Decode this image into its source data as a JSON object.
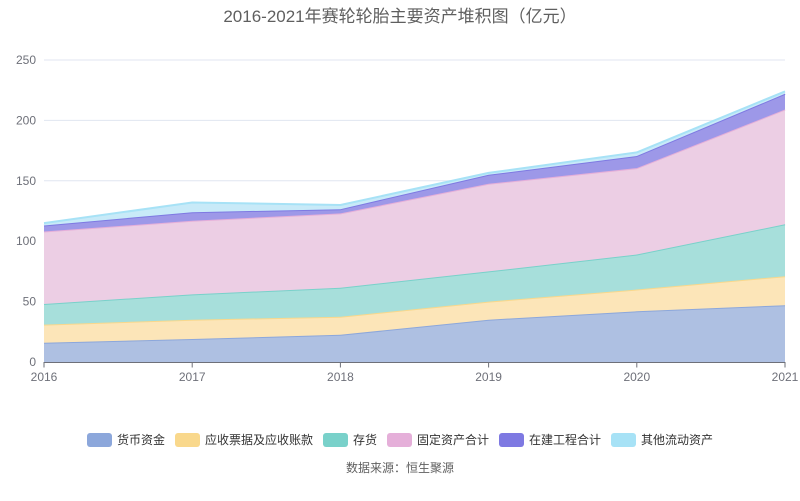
{
  "title": "2016-2021年赛轮轮胎主要资产堆积图（亿元）",
  "source": "数据来源：恒生聚源",
  "axis_color": "#6E7079",
  "grid_color": "#E0E6F1",
  "chart_data": {
    "type": "area",
    "stacked": true,
    "title": "2016-2021年赛轮轮胎主要资产堆积图（亿元）",
    "x": [
      "2016",
      "2017",
      "2018",
      "2019",
      "2020",
      "2021"
    ],
    "series": [
      {
        "name": "货币资金",
        "values": [
          16,
          19,
          22.5,
          35,
          42,
          47
        ],
        "line_color": "#8CA7DB",
        "fill_color": "#AEC0E2"
      },
      {
        "name": "应收票据及应收账款",
        "values": [
          15,
          16,
          15,
          15,
          18,
          24
        ],
        "line_color": "#F9D88C",
        "fill_color": "#FCE5B8"
      },
      {
        "name": "存货",
        "values": [
          17,
          21,
          24,
          25,
          29,
          43
        ],
        "line_color": "#79D1CA",
        "fill_color": "#A7DFDB"
      },
      {
        "name": "固定资产合计",
        "values": [
          60,
          61,
          61.5,
          72.5,
          71.5,
          95
        ],
        "line_color": "#E5AFD9",
        "fill_color": "#ECCEE4"
      },
      {
        "name": "在建工程合计",
        "values": [
          5,
          7,
          3.5,
          7.5,
          10,
          13
        ],
        "line_color": "#7E79E2",
        "fill_color": "#9D98E8"
      },
      {
        "name": "其他流动资产",
        "values": [
          2,
          8,
          3.5,
          1.5,
          3,
          2
        ],
        "line_color": "#A7E2F6",
        "fill_color": "#C8EAF8"
      }
    ],
    "ylabel": "",
    "xlabel": "",
    "ylim": [
      0,
      250
    ],
    "yticks": [
      0,
      50,
      100,
      150,
      200,
      250
    ],
    "grid": true,
    "legend_position": "bottom"
  }
}
